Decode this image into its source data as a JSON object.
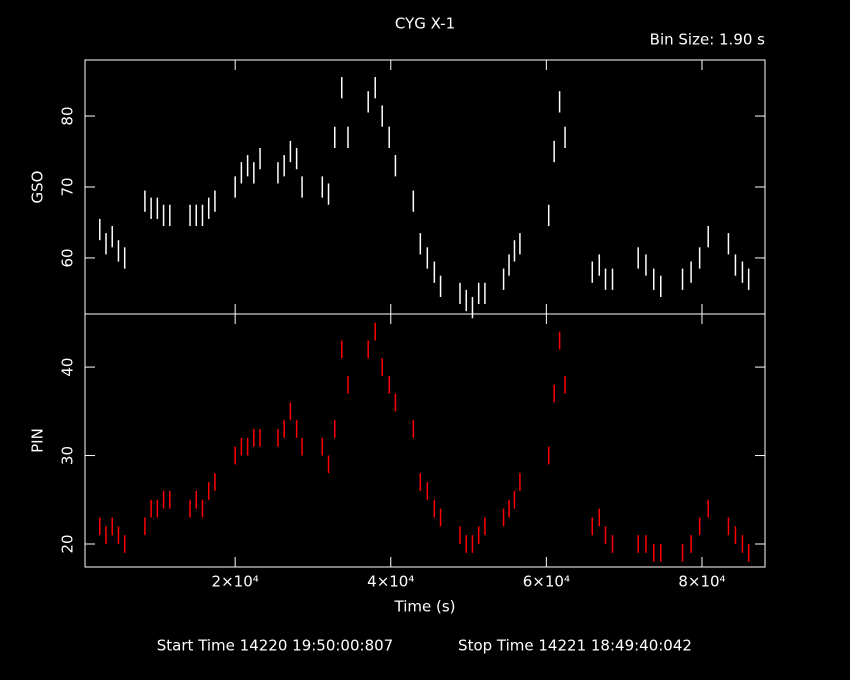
{
  "chart_data": [
    {
      "type": "scatter",
      "title": "CYG X-1",
      "subtitle": "Bin Size: 1.90 s",
      "ylabel": "GSO",
      "color": "#ffffff",
      "x": [
        2600,
        3400,
        4200,
        5000,
        5800,
        8400,
        9200,
        10000,
        10800,
        11600,
        14200,
        15000,
        15800,
        16600,
        17400,
        20000,
        20800,
        21600,
        22400,
        23200,
        25500,
        26300,
        27100,
        27900,
        28600,
        31200,
        32000,
        32800,
        33700,
        34500,
        37100,
        38000,
        38900,
        39800,
        40600,
        42900,
        43800,
        44700,
        45600,
        46400,
        48900,
        49700,
        50500,
        51300,
        52100,
        54500,
        55200,
        55900,
        56600,
        60300,
        61000,
        61700,
        62400,
        65900,
        66800,
        67600,
        68500,
        71800,
        72800,
        73800,
        74700,
        77500,
        78600,
        79700,
        80800,
        83400,
        84300,
        85200,
        86000
      ],
      "values": [
        64,
        62,
        63,
        61,
        60,
        68,
        67,
        67,
        66,
        66,
        66,
        66,
        66,
        67,
        68,
        70,
        72,
        73,
        72,
        74,
        72,
        73,
        75,
        74,
        70,
        70,
        69,
        77,
        84,
        77,
        82,
        84,
        80,
        77,
        73,
        68,
        62,
        60,
        58,
        56,
        55,
        54,
        53,
        55,
        55,
        57,
        59,
        61,
        62,
        66,
        75,
        82,
        77,
        58,
        59,
        57,
        57,
        60,
        59,
        57,
        56,
        57,
        58,
        60,
        63,
        62,
        59,
        58,
        57
      ],
      "yerr": 1.5,
      "xlim": [
        700,
        88100
      ],
      "ylim": [
        52.1,
        87.9
      ],
      "yticks": [
        60,
        70,
        80
      ]
    },
    {
      "type": "scatter",
      "ylabel": "PIN",
      "xlabel": "Time (s)",
      "color": "#ff0000",
      "x": [
        2600,
        3400,
        4200,
        5000,
        5800,
        8400,
        9200,
        10000,
        10800,
        11600,
        14200,
        15000,
        15800,
        16600,
        17400,
        20000,
        20800,
        21600,
        22400,
        23200,
        25500,
        26300,
        27100,
        27900,
        28600,
        31200,
        32000,
        32800,
        33700,
        34500,
        37100,
        38000,
        38900,
        39800,
        40600,
        42900,
        43800,
        44700,
        45600,
        46400,
        48900,
        49700,
        50500,
        51300,
        52100,
        54500,
        55200,
        55900,
        56600,
        60300,
        61000,
        61700,
        62400,
        65900,
        66800,
        67600,
        68500,
        71800,
        72800,
        73800,
        74700,
        77500,
        78600,
        79700,
        80800,
        83400,
        84300,
        85200,
        86000
      ],
      "values": [
        22,
        21,
        22,
        21,
        20,
        22,
        24,
        24,
        25,
        25,
        24,
        25,
        24,
        26,
        27,
        30,
        31,
        31,
        32,
        32,
        32,
        33,
        35,
        33,
        31,
        31,
        29,
        33,
        42,
        38,
        42,
        44,
        40,
        38,
        36,
        33,
        27,
        26,
        24,
        23,
        21,
        20,
        20,
        21,
        22,
        23,
        24,
        25,
        27,
        30,
        37,
        43,
        38,
        22,
        23,
        21,
        20,
        20,
        20,
        19,
        19,
        19,
        20,
        22,
        24,
        22,
        21,
        20,
        19
      ],
      "yerr": 1,
      "xlim": [
        700,
        88100
      ],
      "ylim": [
        17.4,
        46
      ],
      "yticks": [
        20,
        30,
        40
      ],
      "xticks": [
        {
          "value": 20000,
          "label": "2×10⁴"
        },
        {
          "value": 40000,
          "label": "4×10⁴"
        },
        {
          "value": 60000,
          "label": "6×10⁴"
        },
        {
          "value": 80000,
          "label": "8×10⁴"
        }
      ],
      "annotations": [
        "Start Time 14220 19:50:00:807",
        "Stop Time 14221 18:49:40:042"
      ]
    }
  ]
}
